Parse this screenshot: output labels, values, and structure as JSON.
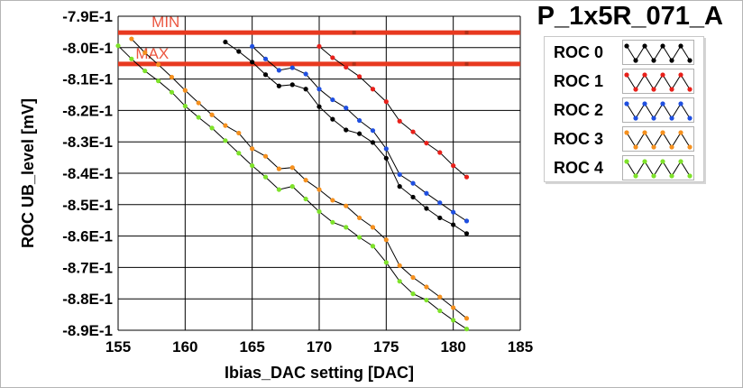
{
  "chart_data": {
    "type": "line",
    "title": "P_1x5R_071_A",
    "xlabel": "Ibias_DAC setting [DAC]",
    "ylabel": "ROC UB_level [mV]",
    "xlim": [
      155,
      185
    ],
    "ylim": [
      -0.89,
      -0.79
    ],
    "xticks": [
      "155",
      "160",
      "165",
      "170",
      "175",
      "180",
      "185"
    ],
    "yticks": [
      "-7.9E-1",
      "-8.0E-1",
      "-8.1E-1",
      "-8.2E-1",
      "-8.3E-1",
      "-8.4E-1",
      "-8.5E-1",
      "-8.6E-1",
      "-8.7E-1",
      "-8.8E-1",
      "-8.9E-1"
    ],
    "grid": true,
    "legend_position": "right",
    "thresholds": [
      {
        "name": "MIN",
        "value": -0.7952,
        "color": "#e8391f"
      },
      {
        "name": "MAX",
        "value": -0.8052,
        "color": "#e8391f"
      }
    ],
    "series": [
      {
        "name": "ROC 0",
        "color": "#000000",
        "x": [
          163,
          164,
          165,
          166,
          167,
          168,
          169,
          170,
          171,
          172,
          173,
          174,
          175,
          176,
          177,
          178,
          179,
          180,
          181
        ],
        "y": [
          -0.7982,
          -0.8012,
          -0.8046,
          -0.8086,
          -0.8122,
          -0.8118,
          -0.8132,
          -0.8188,
          -0.8228,
          -0.8262,
          -0.8274,
          -0.8302,
          -0.8352,
          -0.8442,
          -0.8476,
          -0.8512,
          -0.8542,
          -0.8564,
          -0.8592
        ]
      },
      {
        "name": "ROC 1",
        "color": "#e8201a",
        "x": [
          170,
          171,
          172,
          173,
          174,
          175,
          176,
          177,
          178,
          179,
          180,
          181
        ],
        "y": [
          -0.7996,
          -0.8032,
          -0.8062,
          -0.8092,
          -0.8132,
          -0.8172,
          -0.8234,
          -0.8268,
          -0.8304,
          -0.8334,
          -0.8376,
          -0.8412
        ]
      },
      {
        "name": "ROC 2",
        "color": "#1f4fe0",
        "x": [
          165,
          166,
          167,
          168,
          169,
          170,
          171,
          172,
          173,
          174,
          175,
          176,
          177,
          178,
          179,
          180,
          181
        ],
        "y": [
          -0.7996,
          -0.8036,
          -0.8072,
          -0.8064,
          -0.8084,
          -0.8132,
          -0.8166,
          -0.8192,
          -0.8232,
          -0.8264,
          -0.8322,
          -0.8404,
          -0.8432,
          -0.8464,
          -0.8494,
          -0.8524,
          -0.8552
        ]
      },
      {
        "name": "ROC 3",
        "color": "#f5901e",
        "x": [
          156,
          157,
          158,
          159,
          160,
          161,
          162,
          163,
          164,
          165,
          166,
          167,
          168,
          169,
          170,
          171,
          172,
          173,
          174,
          175,
          176,
          177,
          178,
          179,
          180,
          181
        ],
        "y": [
          -0.7972,
          -0.8016,
          -0.8054,
          -0.8094,
          -0.8136,
          -0.8176,
          -0.8214,
          -0.8248,
          -0.8272,
          -0.8322,
          -0.8346,
          -0.8386,
          -0.8382,
          -0.8422,
          -0.8452,
          -0.8486,
          -0.8504,
          -0.8542,
          -0.8572,
          -0.8612,
          -0.8694,
          -0.8732,
          -0.8762,
          -0.8794,
          -0.8828,
          -0.8862
        ]
      },
      {
        "name": "ROC 4",
        "color": "#7ee22a",
        "x": [
          155,
          156,
          157,
          158,
          159,
          160,
          161,
          162,
          163,
          164,
          165,
          166,
          167,
          168,
          169,
          170,
          171,
          172,
          173,
          174,
          175,
          176,
          177,
          178,
          179,
          180,
          181
        ],
        "y": [
          -0.7994,
          -0.8036,
          -0.8074,
          -0.8106,
          -0.8142,
          -0.8186,
          -0.8222,
          -0.8256,
          -0.8296,
          -0.8336,
          -0.8376,
          -0.8412,
          -0.8452,
          -0.8442,
          -0.8482,
          -0.8522,
          -0.8556,
          -0.8572,
          -0.8604,
          -0.8632,
          -0.8684,
          -0.8744,
          -0.8784,
          -0.8804,
          -0.8838,
          -0.8868,
          -0.8896
        ]
      }
    ]
  }
}
